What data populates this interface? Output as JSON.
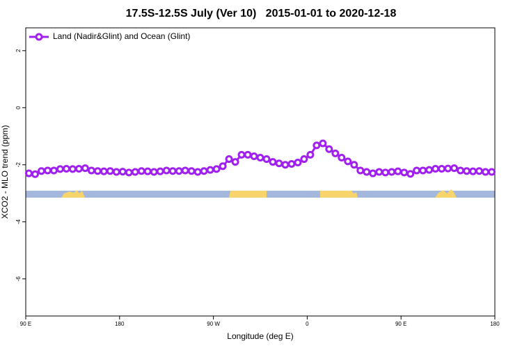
{
  "chart_data": {
    "type": "line",
    "title": "17.5S-12.5S July (Ver 10)   2015-01-01 to 2020-12-18",
    "xlabel": "Longitude (deg E)",
    "ylabel": "XCO2 - MLO trend (ppm)",
    "xlim": [
      90,
      540
    ],
    "ylim": [
      -7.3,
      2.8
    ],
    "xticks": [
      {
        "value": 90,
        "label": "90 E"
      },
      180,
      {
        "value": 270,
        "label": "90 W"
      },
      {
        "value": 360,
        "label": "0"
      },
      {
        "value": 450,
        "label": "90 E"
      },
      {
        "value": 540,
        "label": "180"
      }
    ],
    "yticks": [
      -6,
      -4,
      -2,
      0,
      2
    ],
    "legend": "top-left",
    "x": [
      93,
      99,
      105,
      111,
      117,
      123,
      129,
      135,
      141,
      147,
      153,
      159,
      165,
      171,
      177,
      183,
      189,
      195,
      201,
      207,
      213,
      219,
      225,
      231,
      237,
      243,
      249,
      255,
      261,
      267,
      273,
      279,
      285,
      291,
      297,
      303,
      309,
      315,
      321,
      327,
      333,
      339,
      345,
      351,
      357,
      363,
      369,
      375,
      381,
      387,
      393,
      399,
      405,
      411,
      417,
      423,
      429,
      435,
      441,
      447,
      453,
      459,
      465,
      471,
      477,
      483,
      489,
      495,
      501,
      507,
      513,
      519,
      525,
      531,
      537
    ],
    "series": [
      {
        "name": "Land (Nadir&Glint) and Ocean (Glint)",
        "color": "#a020f0",
        "values": [
          -2.3,
          -2.33,
          -2.22,
          -2.2,
          -2.2,
          -2.15,
          -2.14,
          -2.15,
          -2.14,
          -2.12,
          -2.2,
          -2.22,
          -2.23,
          -2.22,
          -2.25,
          -2.24,
          -2.27,
          -2.25,
          -2.22,
          -2.23,
          -2.25,
          -2.23,
          -2.2,
          -2.22,
          -2.22,
          -2.2,
          -2.22,
          -2.25,
          -2.22,
          -2.18,
          -2.15,
          -2.05,
          -1.8,
          -1.9,
          -1.65,
          -1.65,
          -1.7,
          -1.75,
          -1.8,
          -1.9,
          -1.95,
          -2.0,
          -1.97,
          -1.92,
          -1.8,
          -1.65,
          -1.32,
          -1.25,
          -1.45,
          -1.6,
          -1.75,
          -1.88,
          -2.0,
          -2.2,
          -2.25,
          -2.3,
          -2.25,
          -2.27,
          -2.25,
          -2.23,
          -2.27,
          -2.32,
          -2.2,
          -2.2,
          -2.18,
          -2.14,
          -2.14,
          -2.13,
          -2.12,
          -2.2,
          -2.22,
          -2.23,
          -2.22,
          -2.25,
          -2.25
        ]
      }
    ]
  }
}
